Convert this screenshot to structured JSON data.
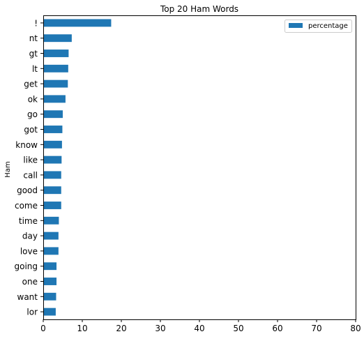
{
  "chart_data": {
    "type": "bar",
    "orientation": "horizontal",
    "title": "Top 20 Ham Words",
    "xlabel": "",
    "ylabel": "Ham",
    "xlim": [
      0,
      80
    ],
    "xticks": [
      "0",
      "10",
      "20",
      "30",
      "40",
      "50",
      "60",
      "70",
      "80"
    ],
    "grid": false,
    "legend_position": "top-right",
    "categories": [
      "!",
      "nt",
      "gt",
      "lt",
      "get",
      "ok",
      "go",
      "got",
      "know",
      "like",
      "call",
      "good",
      "come",
      "time",
      "day",
      "love",
      "going",
      "one",
      "want",
      "lor"
    ],
    "series": [
      {
        "name": "percentage",
        "color": "#1f77b4",
        "values": [
          17.4,
          7.3,
          6.5,
          6.4,
          6.3,
          5.7,
          5.0,
          4.9,
          4.8,
          4.7,
          4.6,
          4.6,
          4.6,
          4.0,
          3.9,
          3.9,
          3.4,
          3.4,
          3.3,
          3.2
        ]
      }
    ]
  }
}
